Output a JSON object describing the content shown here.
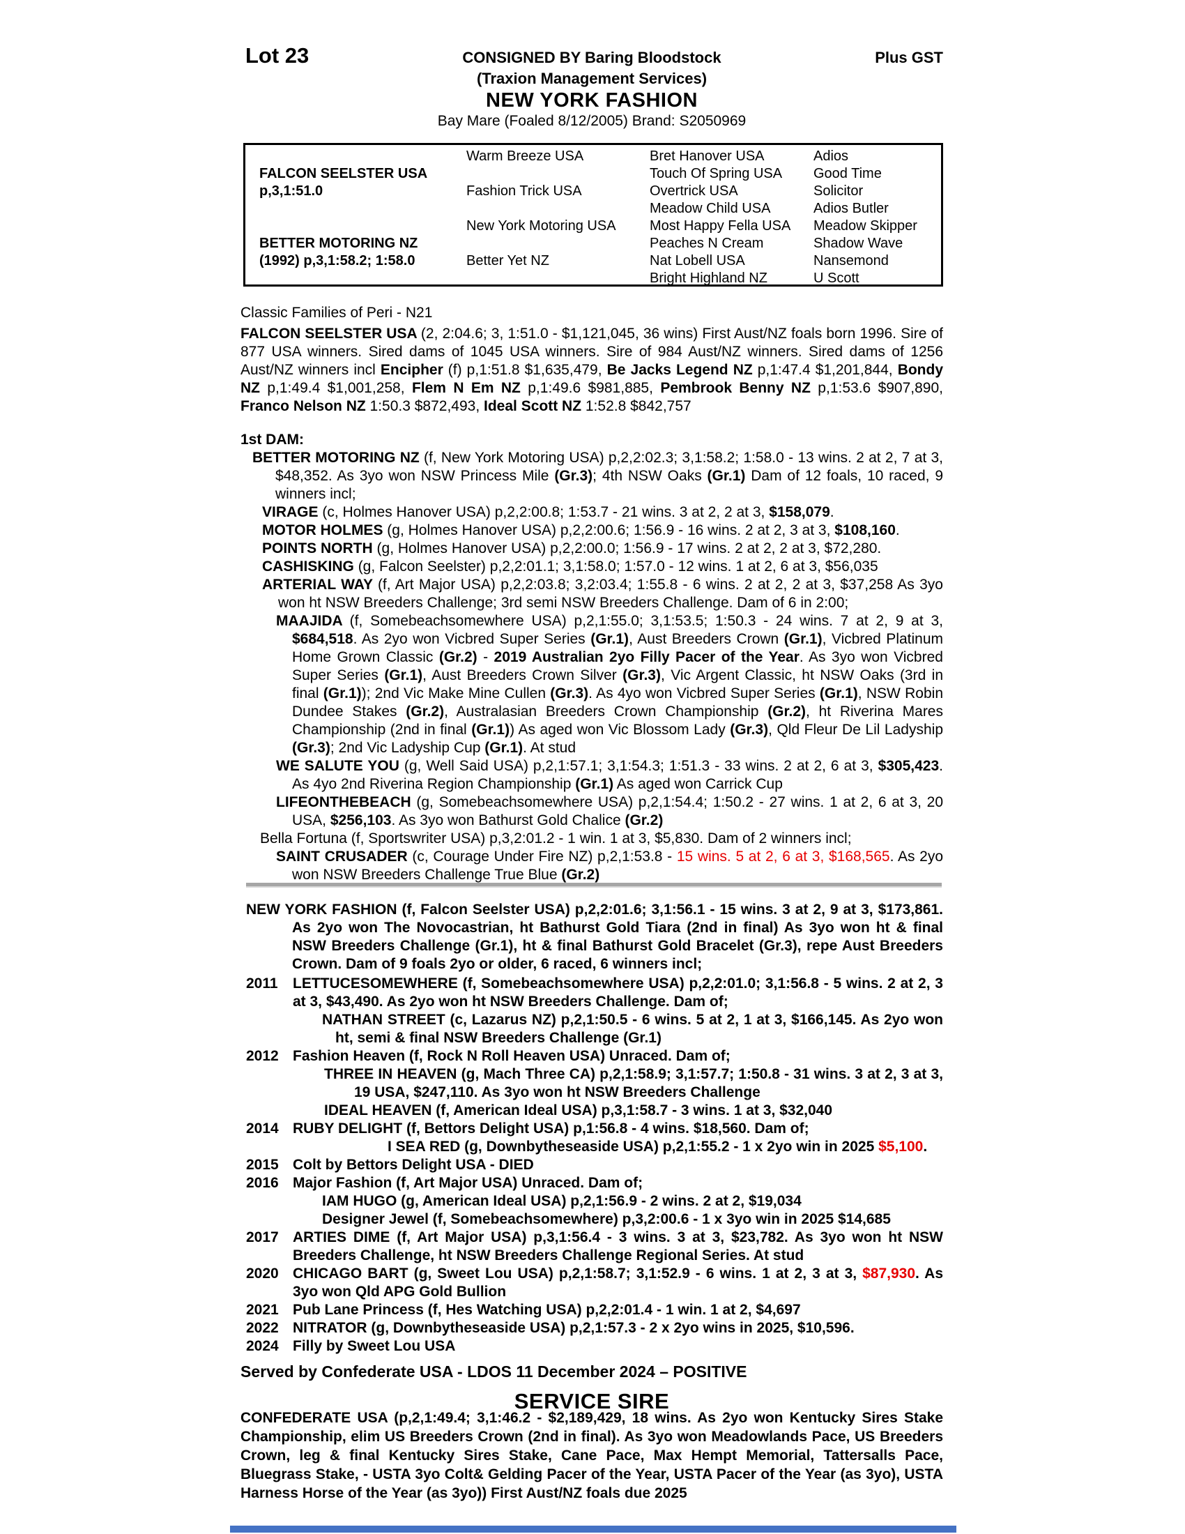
{
  "colors": {
    "red": "#e60000",
    "rule_gray": "#a6a6a6",
    "footer_bar_blue": "#4472c4"
  },
  "header": {
    "lot": "Lot 23",
    "consigned": "CONSIGNED BY Baring Bloodstock",
    "plus_gst": "Plus GST",
    "agency": "(Traxion Management Services)",
    "horse_name": "NEW YORK FASHION",
    "description": "Bay Mare (Foaled 8/12/2005) Brand: S2050969"
  },
  "pedigree": {
    "rows": [
      [
        "",
        "Warm Breeze USA",
        "Bret Hanover USA",
        "Adios"
      ],
      [
        "FALCON SEELSTER USA",
        "",
        "Touch Of Spring USA",
        "Good Time"
      ],
      [
        "p,3,1:51.0",
        "Fashion Trick USA",
        "Overtrick USA",
        "Solicitor"
      ],
      [
        "",
        "",
        "Meadow Child USA",
        "Adios Butler"
      ],
      [
        "",
        "New York Motoring USA",
        "Most Happy Fella USA",
        "Meadow Skipper"
      ],
      [
        "BETTER MOTORING NZ",
        "",
        "Peaches N Cream",
        "Shadow Wave"
      ],
      [
        "(1992) p,3,1:58.2; 1:58.0",
        "Better Yet NZ",
        "Nat Lobell USA",
        "Nansemond"
      ],
      [
        "",
        "",
        "Bright Highland NZ",
        "U Scott"
      ]
    ]
  },
  "classic_families": "Classic Families of Peri - N21",
  "sire_summary": [
    {
      "t": "FALCON SEELSTER USA ",
      "b": true
    },
    {
      "t": "(2, 2:04.6; 3, 1:51.0 - $1,121,045, 36 wins) First Aust/NZ foals born 1996. Sire of 877 USA winners. Sired dams of 1045 USA winners. Sire of 984 Aust/NZ winners. Sired dams of 1256 Aust/NZ winners incl "
    },
    {
      "t": "Encipher",
      "b": true
    },
    {
      "t": " (f) p,1:51.8 $1,635,479, "
    },
    {
      "t": "Be Jacks Legend NZ",
      "b": true
    },
    {
      "t": " p,1:47.4 $1,201,844, "
    },
    {
      "t": "Bondy NZ",
      "b": true
    },
    {
      "t": " p,1:49.4 $1,001,258, "
    },
    {
      "t": "Flem N Em NZ",
      "b": true
    },
    {
      "t": " p,1:49.6 $981,885, "
    },
    {
      "t": "Pembrook Benny NZ",
      "b": true
    },
    {
      "t": " p,1:53.6 $907,890, "
    },
    {
      "t": "Franco Nelson NZ",
      "b": true
    },
    {
      "t": " 1:50.3 $872,493, "
    },
    {
      "t": "Ideal Scott NZ",
      "b": true
    },
    {
      "t": " 1:52.8 $842,757"
    }
  ],
  "first_dam": {
    "label": "1st DAM:",
    "better_motoring": [
      {
        "t": "BETTER MOTORING NZ ",
        "b": true
      },
      {
        "t": "(f, New York Motoring USA) p,2,2:02.3; 3,1:58.2; 1:58.0 - 13 wins. 2 at 2, 7 at 3, $48,352. As 3yo won NSW Princess Mile "
      },
      {
        "t": "(Gr.3)",
        "b": true
      },
      {
        "t": "; 4th NSW Oaks "
      },
      {
        "t": "(Gr.1)",
        "b": true
      },
      {
        "t": " Dam of 12 foals, 10 raced, 9 winners incl;"
      }
    ],
    "virage": [
      {
        "t": "VIRAGE ",
        "b": true
      },
      {
        "t": "(c, Holmes Hanover USA) p,2,2:00.8; 1:53.7 - 21 wins. 3 at 2, 2 at 3, "
      },
      {
        "t": "$158,079",
        "b": true
      },
      {
        "t": "."
      }
    ],
    "motor_holmes": [
      {
        "t": "MOTOR HOLMES ",
        "b": true
      },
      {
        "t": "(g, Holmes Hanover USA) p,2,2:00.6; 1:56.9 - 16 wins. 2 at 2, 3 at 3, "
      },
      {
        "t": "$108,160",
        "b": true
      },
      {
        "t": "."
      }
    ],
    "points_north": [
      {
        "t": "POINTS NORTH ",
        "b": true
      },
      {
        "t": "(g, Holmes Hanover USA) p,2,2:00.0; 1:56.9 - 17 wins. 2 at 2, 2 at 3, $72,280."
      }
    ],
    "cashisking": [
      {
        "t": "CASHISKING ",
        "b": true
      },
      {
        "t": "(g, Falcon Seelster) p,2,2:01.1; 3,1:58.0; 1:57.0 - 12 wins. 1 at 2, 6 at 3, $56,035"
      }
    ],
    "arterial_way": [
      {
        "t": "ARTERIAL WAY ",
        "b": true
      },
      {
        "t": "(f, Art Major USA) p,2,2:03.8; 3,2:03.4; 1:55.8 - 6 wins. 2 at 2, 2 at 3, $37,258 As 3yo won ht NSW Breeders Challenge; 3rd semi NSW Breeders Challenge. Dam of 6 in 2:00;"
      }
    ],
    "maajida": [
      {
        "t": "MAAJIDA ",
        "b": true
      },
      {
        "t": "(f, Somebeachsomewhere USA) p,2,1:55.0; 3,1:53.5; 1:50.3 - 24 wins. 7 at 2, 9 at 3, "
      },
      {
        "t": "$684,518",
        "b": true
      },
      {
        "t": ". As 2yo won Vicbred Super Series "
      },
      {
        "t": "(Gr.1)",
        "b": true
      },
      {
        "t": ", Aust Breeders Crown "
      },
      {
        "t": "(Gr.1)",
        "b": true
      },
      {
        "t": ", Vicbred Platinum Home Grown Classic "
      },
      {
        "t": "(Gr.2)",
        "b": true
      },
      {
        "t": " - "
      },
      {
        "t": "2019 Australian 2yo Filly Pacer of the Year",
        "b": true
      },
      {
        "t": ". As 3yo won Vicbred Super Series "
      },
      {
        "t": "(Gr.1)",
        "b": true
      },
      {
        "t": ", Aust Breeders Crown Silver "
      },
      {
        "t": "(Gr.3)",
        "b": true
      },
      {
        "t": ", Vic Argent Classic, ht NSW Oaks (3rd in final "
      },
      {
        "t": "(Gr.1)",
        "b": true
      },
      {
        "t": "); 2nd Vic Make Mine Cullen "
      },
      {
        "t": "(Gr.3)",
        "b": true
      },
      {
        "t": ". As 4yo won Vicbred Super Series "
      },
      {
        "t": "(Gr.1)",
        "b": true
      },
      {
        "t": ", NSW Robin Dundee Stakes "
      },
      {
        "t": "(Gr.2)",
        "b": true
      },
      {
        "t": ", Australasian Breeders Crown Championship "
      },
      {
        "t": "(Gr.2)",
        "b": true
      },
      {
        "t": ", ht Riverina Mares Championship (2nd in final "
      },
      {
        "t": "(Gr.1)",
        "b": true
      },
      {
        "t": ") As aged won Vic Blossom Lady "
      },
      {
        "t": "(Gr.3)",
        "b": true
      },
      {
        "t": ", Qld Fleur De Lil Ladyship "
      },
      {
        "t": "(Gr.3)",
        "b": true
      },
      {
        "t": "; 2nd Vic Ladyship Cup "
      },
      {
        "t": "(Gr.1)",
        "b": true
      },
      {
        "t": ". At stud"
      }
    ],
    "we_salute_you": [
      {
        "t": "WE SALUTE YOU ",
        "b": true
      },
      {
        "t": "(g, Well Said USA) p,2,1:57.1; 3,1:54.3; 1:51.3 - 33 wins. 2 at 2, 6 at 3, "
      },
      {
        "t": "$305,423",
        "b": true
      },
      {
        "t": ". As 4yo 2nd Riverina Region Championship "
      },
      {
        "t": "(Gr.1)",
        "b": true
      },
      {
        "t": " As aged won Carrick Cup"
      }
    ],
    "lifeonthebeach": [
      {
        "t": "LIFEONTHEBEACH ",
        "b": true
      },
      {
        "t": "(g, Somebeachsomewhere USA) p,2,1:54.4; 1:50.2 - 27 wins. 1 at 2, 6 at 3, 20 USA, "
      },
      {
        "t": "$256,103",
        "b": true
      },
      {
        "t": ". As 3yo won Bathurst Gold Chalice "
      },
      {
        "t": "(Gr.2)",
        "b": true
      }
    ],
    "bella_fortuna": [
      {
        "t": "Bella Fortuna (f, Sportswriter USA) p,3,2:01.2 - 1 win. 1 at 3, $5,830. Dam of 2 winners incl;"
      }
    ],
    "saint_crusader": [
      {
        "t": "SAINT CRUSADER ",
        "b": true
      },
      {
        "t": "(c, Courage Under Fire NZ) p,2,1:53.8 - "
      },
      {
        "t": "15 wins. 5 at 2, 6 at 3, $168,565",
        "r": true
      },
      {
        "t": ". As 2yo won NSW Breeders Challenge True Blue "
      },
      {
        "t": "(Gr.2)",
        "b": true
      }
    ]
  },
  "mare_record": [
    {
      "t": "NEW YORK FASHION (f, Falcon Seelster USA) p,2,2:01.6; 3,1:56.1 - 15 wins. 3 at 2, 9 at 3, $173,861. As 2yo won The Novocastrian, ht Bathurst Gold Tiara (2nd in final) As 3yo won ht & final NSW Breeders Challenge (Gr.1), ht & final Bathurst Gold Bracelet (Gr.3), repe Aust Breeders Crown. Dam of 9 foals 2yo or older, 6 raced, 6 winners incl;",
      "b": true
    }
  ],
  "progeny": {
    "y2011": {
      "year": "2011",
      "segs": [
        {
          "t": "LETTUCESOMEWHERE (f, Somebeachsomewhere USA) p,2,2:01.0; 3,1:56.8 - 5 wins. 2 at 2, 3 at 3, $43,490. As 2yo won ht NSW Breeders Challenge. Dam of;",
          "b": true
        }
      ]
    },
    "nathan_street": [
      {
        "t": "NATHAN STREET (c, Lazarus NZ) p,2,1:50.5 - 6 wins. 5 at 2, 1 at 3, $166,145. As 2yo won ht, semi & final NSW Breeders Challenge (Gr.1)",
        "b": true
      }
    ],
    "y2012": {
      "year": "2012",
      "segs": [
        {
          "t": "Fashion Heaven (f, Rock N Roll Heaven USA) Unraced. Dam of;",
          "b": true
        }
      ]
    },
    "three_in_heaven": [
      {
        "t": "THREE IN HEAVEN (g, Mach Three CA) p,2,1:58.9; 3,1:57.7; 1:50.8 - 31 wins. 3 at 2, 3 at 3, 19 USA, $247,110. As 3yo won ht NSW Breeders Challenge",
        "b": true
      }
    ],
    "ideal_heaven": [
      {
        "t": "IDEAL HEAVEN (f, American Ideal USA) p,3,1:58.7 - 3 wins. 1 at 3, $32,040",
        "b": true
      }
    ],
    "y2014": {
      "year": "2014",
      "segs": [
        {
          "t": "RUBY DELIGHT (f, Bettors Delight USA) p,1:56.8 - 4 wins. $18,560. Dam of;",
          "b": true
        }
      ]
    },
    "i_sea_red": [
      {
        "t": "I SEA RED (g, Downbytheseaside USA) p,2,1:55.2 - 1 x 2yo win in 2025 ",
        "b": true
      },
      {
        "t": "$5,100",
        "b": true,
        "r": true
      },
      {
        "t": ".",
        "b": true
      }
    ],
    "y2015": {
      "year": "2015",
      "segs": [
        {
          "t": "Colt by Bettors Delight USA - DIED",
          "b": true
        }
      ]
    },
    "y2016": {
      "year": "2016",
      "segs": [
        {
          "t": "Major Fashion (f, Art Major USA) Unraced. Dam of;",
          "b": true
        }
      ]
    },
    "iam_hugo": [
      {
        "t": "IAM HUGO (g, American Ideal USA) p,2,1:56.9 - 2 wins. 2 at 2, $19,034",
        "b": true
      }
    ],
    "designer_jewel": [
      {
        "t": "Designer Jewel (f, Somebeachsomewhere) p,3,2:00.6 - 1 x 3yo win in 2025 $14,685",
        "b": true
      }
    ],
    "y2017": {
      "year": "2017",
      "segs": [
        {
          "t": "ARTIES DIME (f, Art Major USA) p,3,1:56.4 - 3 wins. 3 at 3, $23,782. As 3yo won ht NSW Breeders Challenge, ht NSW Breeders Challenge Regional Series. At stud",
          "b": true
        }
      ]
    },
    "y2020": {
      "year": "2020",
      "segs": [
        {
          "t": "CHICAGO BART (g, Sweet Lou USA) p,2,1:58.7; 3,1:52.9 - 6 wins. 1 at 2, 3 at 3, ",
          "b": true
        },
        {
          "t": "$87,930",
          "b": true,
          "r": true
        },
        {
          "t": ". As 3yo won Qld APG Gold Bullion",
          "b": true
        }
      ]
    },
    "y2021": {
      "year": "2021",
      "segs": [
        {
          "t": "Pub Lane Princess (f, Hes Watching USA) p,2,2:01.4 - 1 win. 1 at 2, $4,697",
          "b": true
        }
      ]
    },
    "y2022": {
      "year": "2022",
      "segs": [
        {
          "t": "NITRATOR (g, Downbytheseaside USA) p,2,1:57.3 - 2 x 2yo wins in 2025, $10,596.",
          "b": true
        }
      ]
    },
    "y2024": {
      "year": "2024",
      "segs": [
        {
          "t": "Filly by Sweet Lou USA",
          "b": true
        }
      ]
    }
  },
  "service": {
    "served_line": "Served by Confederate USA - LDOS 11 December 2024 – POSITIVE",
    "title": "SERVICE SIRE",
    "sire_record": [
      {
        "t": "CONFEDERATE USA (p,2,1:49.4; 3,1:46.2 - $2,189,429, 18 wins. As 2yo won Kentucky Sires Stake Championship, elim US Breeders Crown (2nd in final). As 3yo won Meadowlands Pace, US Breeders Crown, leg & final Kentucky Sires Stake, Cane Pace, Max Hempt Memorial, Tattersalls Pace, Bluegrass Stake, - USTA 3yo Colt& Gelding Pacer of the Year, USTA Pacer of the Year (as 3yo), USTA Harness Horse of the Year (as 3yo)) First Aust/NZ foals due 2025",
        "b": true
      }
    ]
  }
}
